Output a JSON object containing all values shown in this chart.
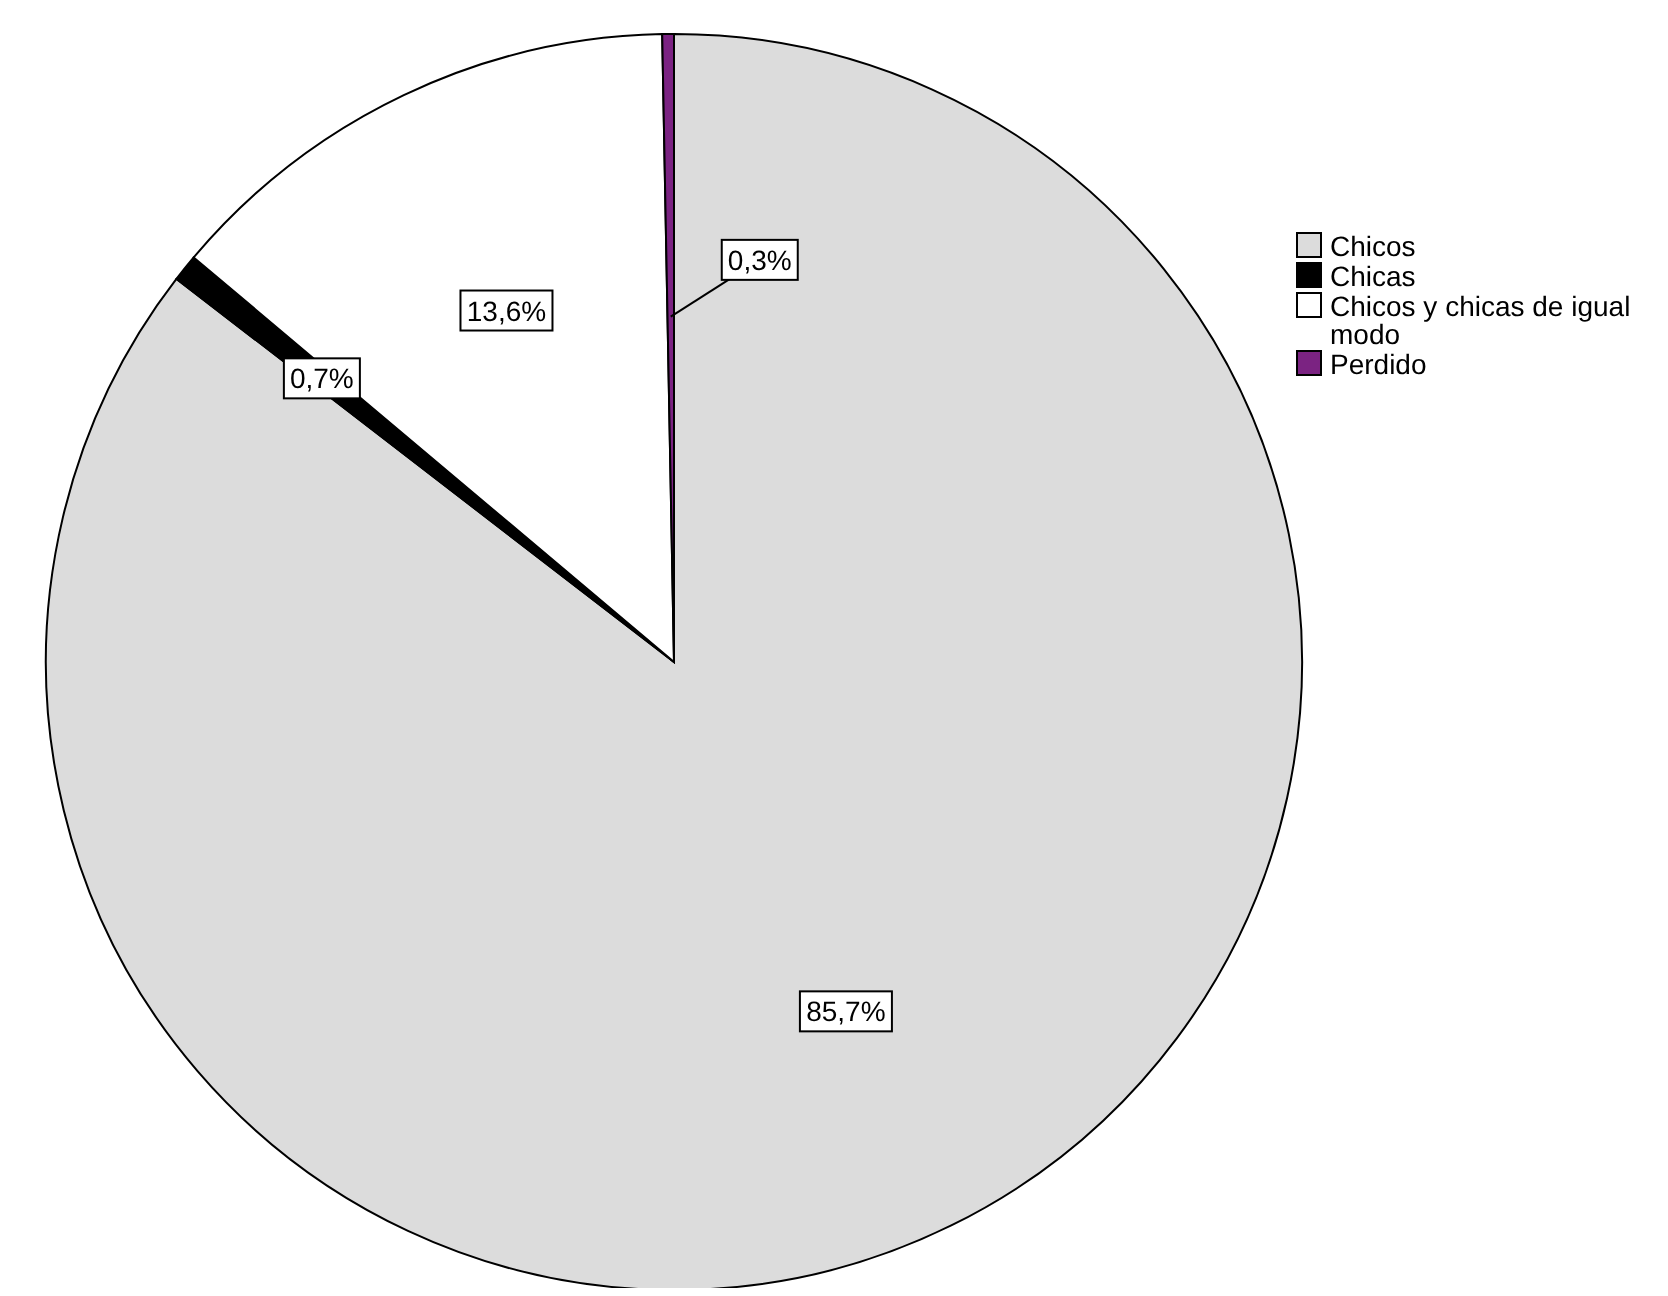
{
  "chart_data": {
    "type": "pie",
    "categories": [
      "Chicos",
      "Chicas",
      "Chicos y chicas de igual modo",
      "Perdido"
    ],
    "values": [
      85.7,
      0.7,
      13.6,
      0.3
    ],
    "colors": [
      "#dcdcdc",
      "#000000",
      "#ffffff",
      "#7b2382"
    ],
    "value_labels": [
      "85,7%",
      "0,7%",
      "13,6%",
      "0,3%"
    ],
    "legend": "right"
  }
}
